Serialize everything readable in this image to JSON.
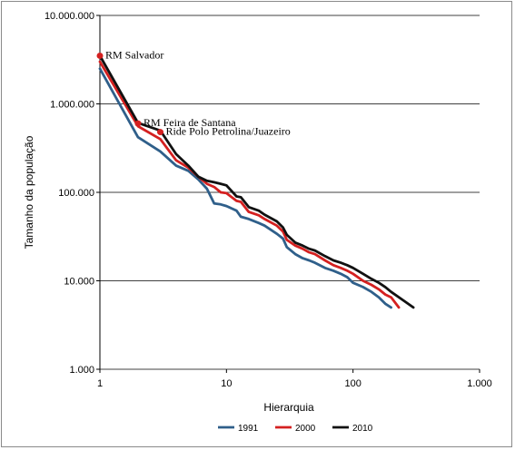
{
  "chart_data": {
    "type": "line",
    "xlabel": "Hierarquia",
    "ylabel": "Tamanho da população",
    "xscale": "log",
    "yscale": "log",
    "xlim": [
      1,
      1000
    ],
    "ylim": [
      1000,
      10000000
    ],
    "x_ticks": [
      {
        "value": 1,
        "label": "1"
      },
      {
        "value": 10,
        "label": "10"
      },
      {
        "value": 100,
        "label": "100"
      },
      {
        "value": 1000,
        "label": "1.000"
      }
    ],
    "y_ticks": [
      {
        "value": 1000,
        "label": "1.000"
      },
      {
        "value": 10000,
        "label": "10.000"
      },
      {
        "value": 100000,
        "label": "100.000"
      },
      {
        "value": 1000000,
        "label": "1.000.000"
      },
      {
        "value": 10000000,
        "label": "10.000.000"
      }
    ],
    "grid": {
      "horizontal": true,
      "vertical": false
    },
    "legend": {
      "position": "bottom"
    },
    "series": [
      {
        "name": "1991",
        "color": "#2f5f8a",
        "points": [
          [
            1,
            2500000
          ],
          [
            2,
            420000
          ],
          [
            3,
            290000
          ],
          [
            4,
            200000
          ],
          [
            5,
            175000
          ],
          [
            6,
            140000
          ],
          [
            7,
            110000
          ],
          [
            8,
            75000
          ],
          [
            9,
            73000
          ],
          [
            10,
            70000
          ],
          [
            12,
            62000
          ],
          [
            13,
            53000
          ],
          [
            15,
            50000
          ],
          [
            18,
            45000
          ],
          [
            20,
            42000
          ],
          [
            25,
            34000
          ],
          [
            28,
            30000
          ],
          [
            30,
            24000
          ],
          [
            35,
            20000
          ],
          [
            40,
            18000
          ],
          [
            45,
            17000
          ],
          [
            50,
            16000
          ],
          [
            60,
            14000
          ],
          [
            70,
            13000
          ],
          [
            80,
            12000
          ],
          [
            90,
            11000
          ],
          [
            100,
            9500
          ],
          [
            120,
            8500
          ],
          [
            140,
            7500
          ],
          [
            160,
            6500
          ],
          [
            180,
            5500
          ],
          [
            200,
            5000
          ]
        ]
      },
      {
        "name": "2000",
        "color": "#d42020",
        "points": [
          [
            1,
            3000000
          ],
          [
            2,
            560000
          ],
          [
            3,
            400000
          ],
          [
            4,
            230000
          ],
          [
            5,
            190000
          ],
          [
            6,
            150000
          ],
          [
            7,
            125000
          ],
          [
            8,
            115000
          ],
          [
            9,
            100000
          ],
          [
            10,
            98000
          ],
          [
            12,
            80000
          ],
          [
            13,
            78000
          ],
          [
            15,
            60000
          ],
          [
            18,
            55000
          ],
          [
            20,
            50000
          ],
          [
            25,
            42000
          ],
          [
            28,
            36000
          ],
          [
            30,
            29000
          ],
          [
            35,
            25000
          ],
          [
            40,
            23000
          ],
          [
            45,
            21000
          ],
          [
            50,
            20000
          ],
          [
            60,
            17000
          ],
          [
            70,
            15000
          ],
          [
            80,
            14000
          ],
          [
            90,
            13000
          ],
          [
            100,
            12000
          ],
          [
            120,
            10000
          ],
          [
            140,
            9000
          ],
          [
            160,
            8000
          ],
          [
            180,
            7000
          ],
          [
            200,
            6500
          ],
          [
            230,
            5000
          ]
        ]
      },
      {
        "name": "2010",
        "color": "#111111",
        "points": [
          [
            1,
            3500000
          ],
          [
            2,
            610000
          ],
          [
            3,
            500000
          ],
          [
            4,
            270000
          ],
          [
            5,
            200000
          ],
          [
            6,
            150000
          ],
          [
            7,
            135000
          ],
          [
            8,
            130000
          ],
          [
            9,
            125000
          ],
          [
            10,
            120000
          ],
          [
            12,
            90000
          ],
          [
            13,
            88000
          ],
          [
            15,
            68000
          ],
          [
            18,
            62000
          ],
          [
            20,
            56000
          ],
          [
            25,
            47000
          ],
          [
            28,
            40000
          ],
          [
            30,
            33000
          ],
          [
            35,
            27000
          ],
          [
            40,
            25000
          ],
          [
            45,
            23000
          ],
          [
            50,
            22000
          ],
          [
            60,
            19000
          ],
          [
            70,
            17000
          ],
          [
            80,
            16000
          ],
          [
            90,
            15000
          ],
          [
            100,
            14000
          ],
          [
            120,
            12000
          ],
          [
            140,
            10500
          ],
          [
            160,
            9500
          ],
          [
            180,
            8500
          ],
          [
            200,
            7500
          ],
          [
            250,
            6000
          ],
          [
            300,
            5000
          ]
        ]
      }
    ],
    "annotations": [
      {
        "label": "RM Salvador",
        "x": 1,
        "y": 3500000,
        "color": "#d42020"
      },
      {
        "label": "RM Feira de Santana",
        "x": 2,
        "y": 600000,
        "color": "#d42020"
      },
      {
        "label": "Ride Polo Petrolina/Juazeiro",
        "x": 3,
        "y": 480000,
        "color": "#d42020"
      }
    ]
  }
}
